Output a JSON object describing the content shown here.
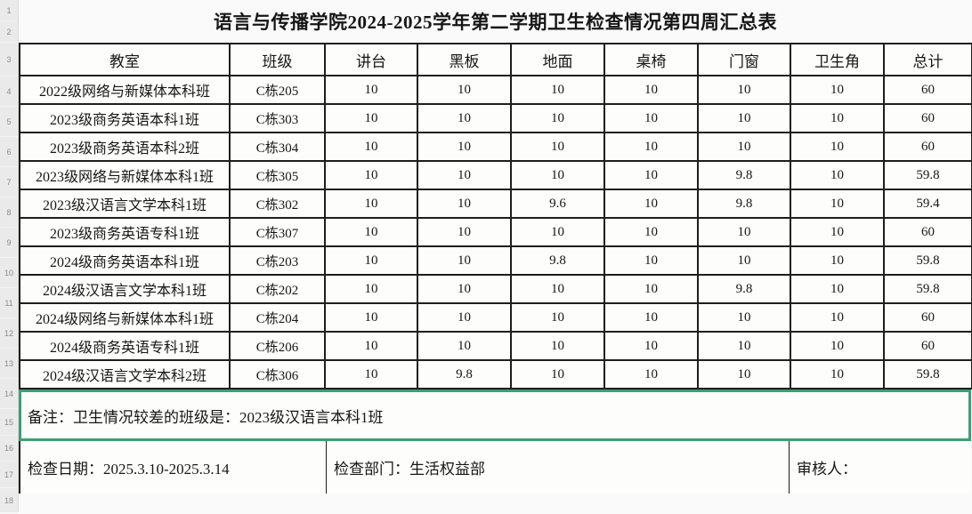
{
  "title": "语言与传播学院2024-2025学年第二学期卫生检查情况第四周汇总表",
  "row_numbers": [
    "1",
    "2",
    "3",
    "4",
    "5",
    "6",
    "7",
    "8",
    "9",
    "10",
    "11",
    "12",
    "13",
    "14",
    "15",
    "16",
    "17",
    "18"
  ],
  "table": {
    "headers": [
      "教室",
      "班级",
      "讲台",
      "黑板",
      "地面",
      "桌椅",
      "门窗",
      "卫生角",
      "总计"
    ],
    "rows": [
      [
        "2022级网络与新媒体本科班",
        "C栋205",
        "10",
        "10",
        "10",
        "10",
        "10",
        "10",
        "60"
      ],
      [
        "2023级商务英语本科1班",
        "C栋303",
        "10",
        "10",
        "10",
        "10",
        "10",
        "10",
        "60"
      ],
      [
        "2023级商务英语本科2班",
        "C栋304",
        "10",
        "10",
        "10",
        "10",
        "10",
        "10",
        "60"
      ],
      [
        "2023级网络与新媒体本科1班",
        "C栋305",
        "10",
        "10",
        "10",
        "10",
        "9.8",
        "10",
        "59.8"
      ],
      [
        "2023级汉语言文学本科1班",
        "C栋302",
        "10",
        "10",
        "9.6",
        "10",
        "9.8",
        "10",
        "59.4"
      ],
      [
        "2023级商务英语专科1班",
        "C栋307",
        "10",
        "10",
        "10",
        "10",
        "10",
        "10",
        "60"
      ],
      [
        "2024级商务英语本科1班",
        "C栋203",
        "10",
        "10",
        "9.8",
        "10",
        "10",
        "10",
        "59.8"
      ],
      [
        "2024级汉语言文学本科1班",
        "C栋202",
        "10",
        "10",
        "10",
        "10",
        "9.8",
        "10",
        "59.8"
      ],
      [
        "2024级网络与新媒体本科1班",
        "C栋204",
        "10",
        "10",
        "10",
        "10",
        "10",
        "10",
        "60"
      ],
      [
        "2024级商务英语专科1班",
        "C栋206",
        "10",
        "10",
        "10",
        "10",
        "10",
        "10",
        "60"
      ],
      [
        "2024级汉语言文学本科2班",
        "C栋306",
        "10",
        "9.8",
        "10",
        "10",
        "10",
        "10",
        "59.8"
      ]
    ]
  },
  "remark": "备注：卫生情况较差的班级是：2023级汉语言本科1班",
  "footer": {
    "inspection_date": "检查日期：2025.3.10-2025.3.14",
    "inspection_department": "检查部门：生活权益部",
    "reviewer": "审核人："
  },
  "colors": {
    "selection_green": "#3d9e76",
    "table_border": "#1e1e1e",
    "gutter_background": "#eaeaea"
  }
}
